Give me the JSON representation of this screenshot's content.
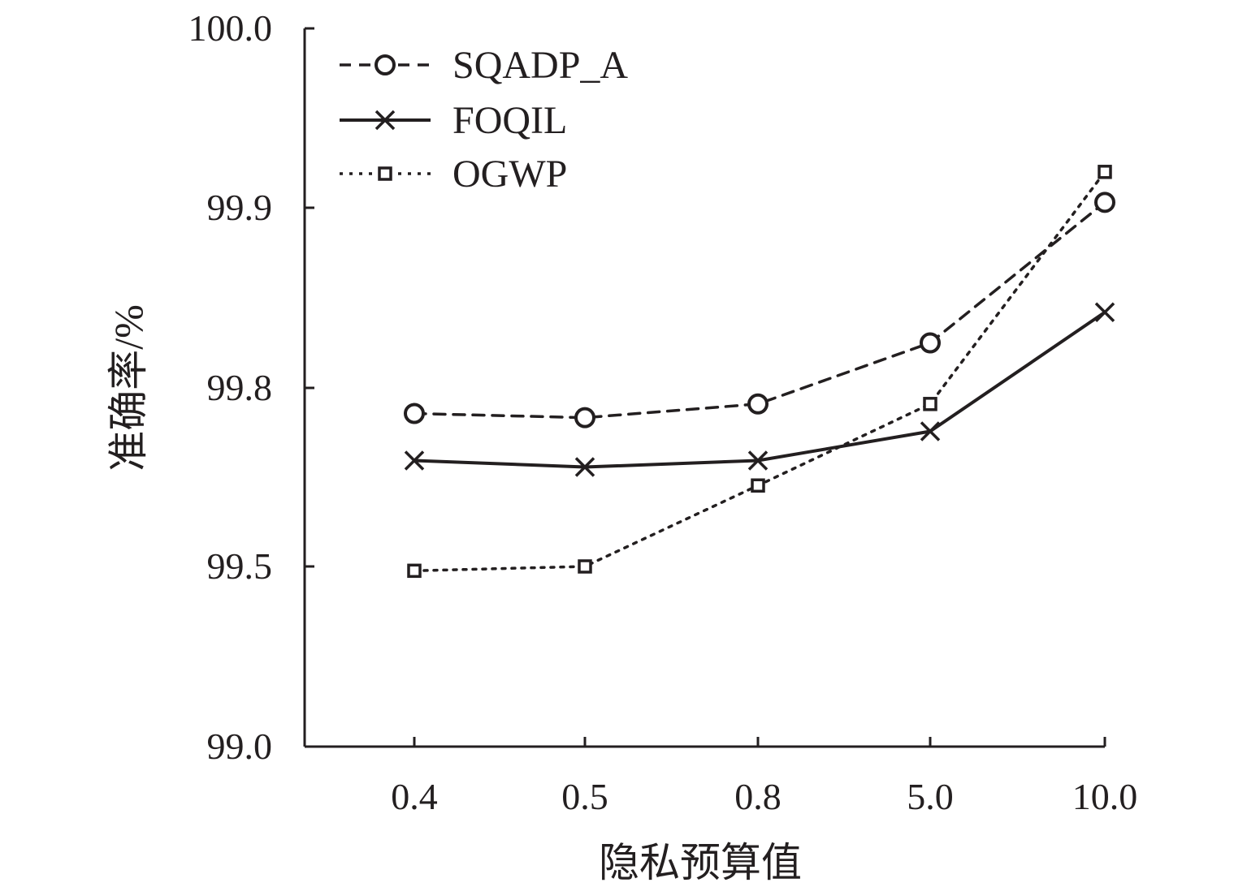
{
  "chart_data": {
    "type": "line",
    "xlabel": "隐私预算值",
    "ylabel": "准确率/%",
    "categories": [
      "0.4",
      "0.5",
      "0.8",
      "5.0",
      "10.0"
    ],
    "y_ticks": [
      "99.0",
      "99.5",
      "99.8",
      "99.9",
      "100.0"
    ],
    "legend_position": "top-left",
    "grid": false,
    "series": [
      {
        "name": "SQADP_A",
        "marker": "circle",
        "line_style": "dashed",
        "values": [
          99.757,
          99.75,
          99.773,
          99.825,
          99.903
        ]
      },
      {
        "name": "FOQIL",
        "marker": "x",
        "line_style": "solid",
        "values": [
          99.678,
          99.667,
          99.678,
          99.727,
          99.842
        ]
      },
      {
        "name": "OGWP",
        "marker": "square",
        "line_style": "dotted",
        "values": [
          99.488,
          99.5,
          99.636,
          99.773,
          99.92
        ]
      }
    ]
  },
  "colors": {
    "ink": "#231f20",
    "background": "#ffffff"
  }
}
